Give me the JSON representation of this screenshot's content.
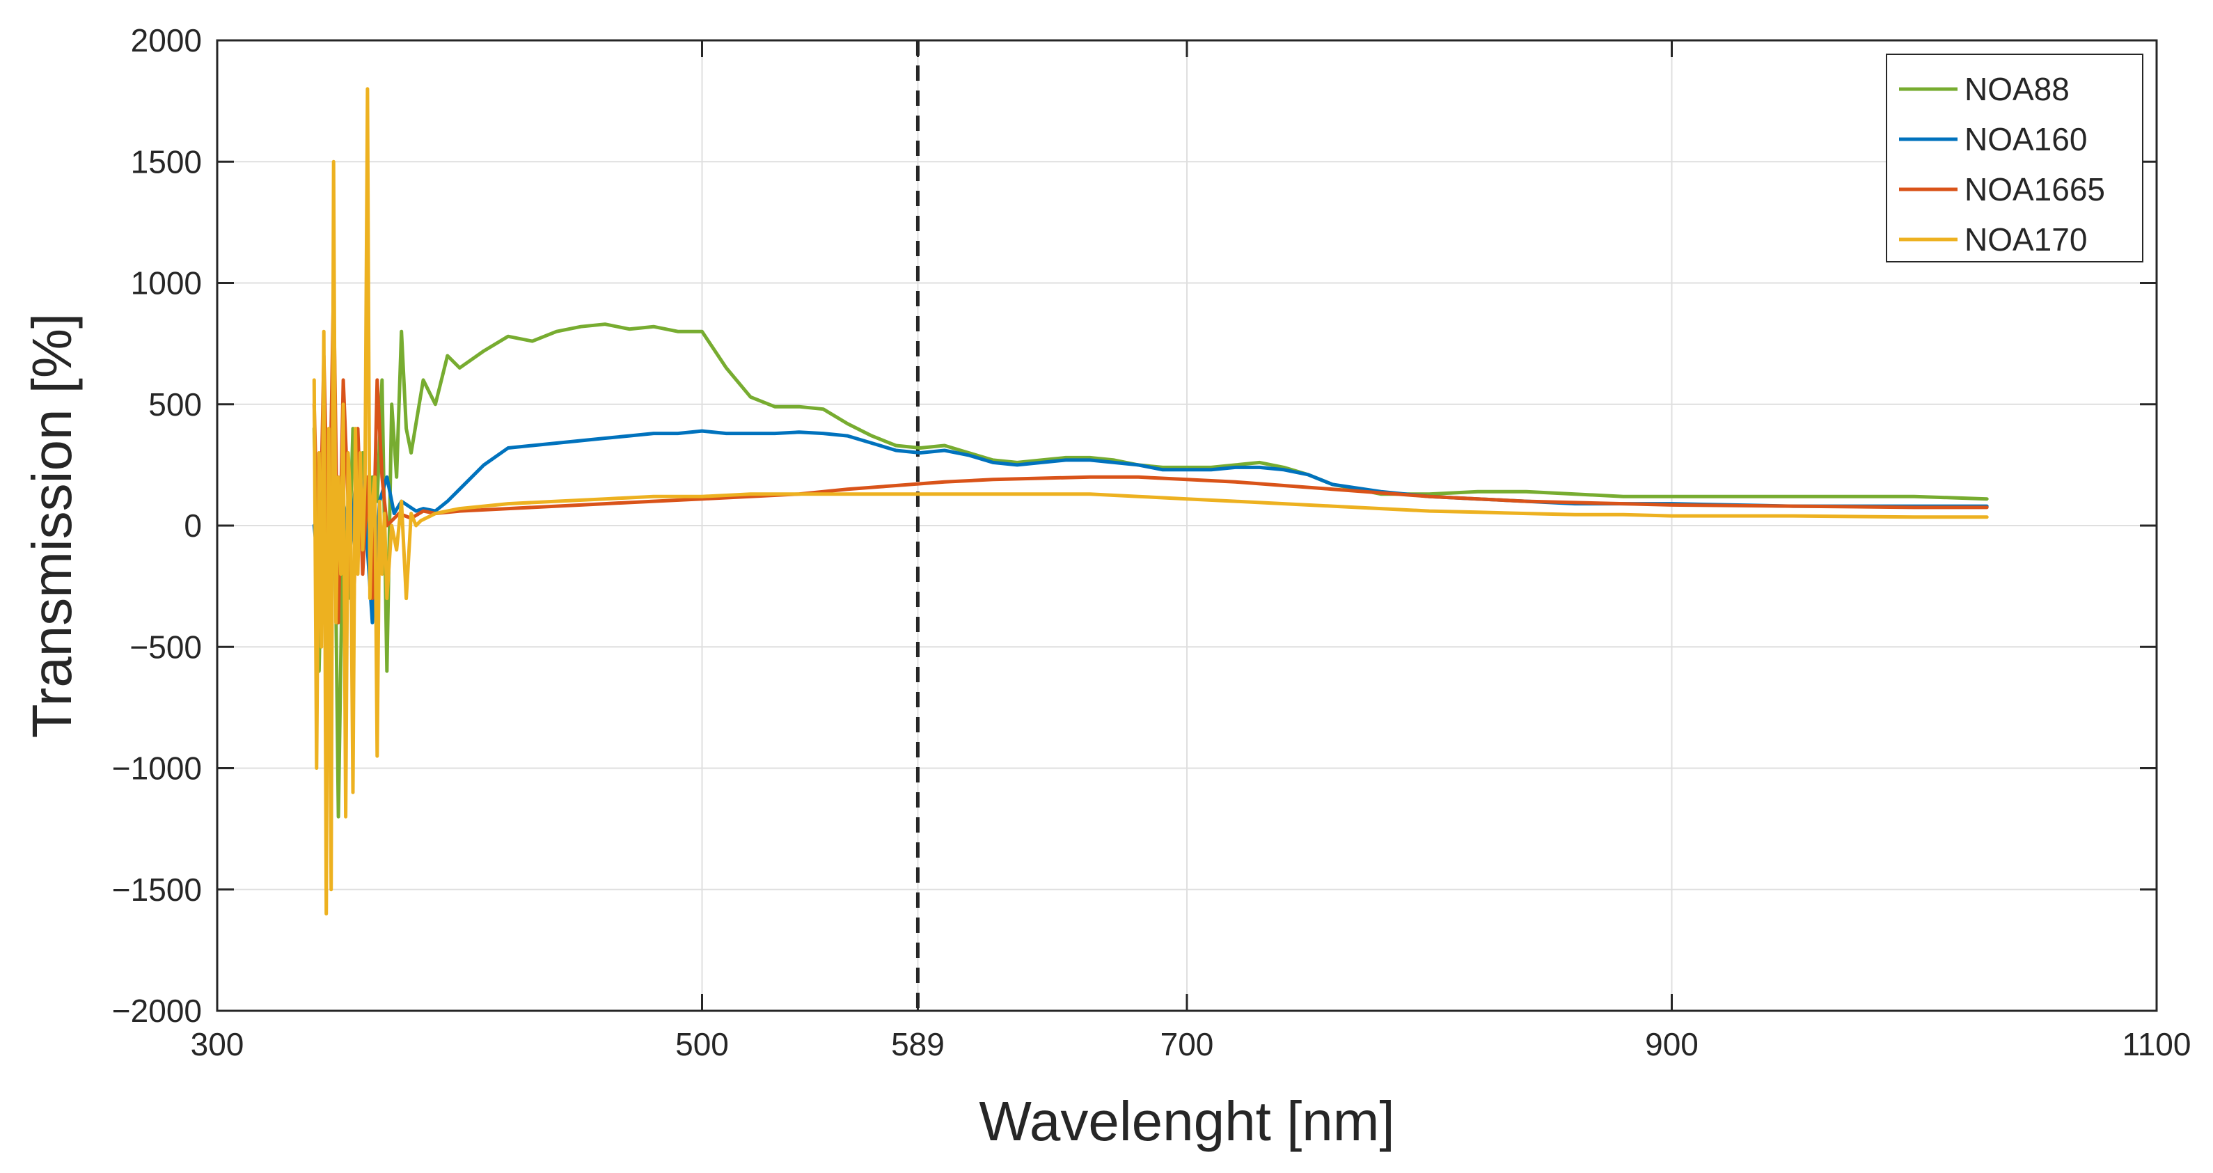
{
  "chart_data": {
    "type": "line",
    "title": "",
    "xlabel": "Wavelenght [nm]",
    "ylabel": "Transmission [%]",
    "xlim": [
      300,
      1100
    ],
    "ylim": [
      -2000,
      2000
    ],
    "xticks": [
      300,
      500,
      589,
      700,
      900,
      1100
    ],
    "yticks": [
      -2000,
      -1500,
      -1000,
      -500,
      0,
      500,
      1000,
      1500,
      2000
    ],
    "xtick_labels": [
      "300",
      "500",
      "589",
      "700",
      "900",
      "1100"
    ],
    "ytick_labels": [
      "−2000",
      "−1500",
      "−1000",
      "−500",
      "0",
      "500",
      "1000",
      "1500",
      "2000"
    ],
    "grid": true,
    "legend_position": "top-right",
    "reference_line": {
      "x": 589,
      "style": "dashed",
      "color": "#262626"
    },
    "series": [
      {
        "name": "NOA88",
        "color": "#77AC30",
        "x": [
          340,
          342,
          344,
          346,
          348,
          350,
          352,
          354,
          356,
          358,
          360,
          362,
          364,
          366,
          368,
          370,
          372,
          374,
          376,
          378,
          380,
          385,
          390,
          395,
          400,
          410,
          420,
          430,
          440,
          450,
          460,
          470,
          480,
          490,
          500,
          510,
          520,
          530,
          540,
          550,
          560,
          570,
          580,
          590,
          600,
          610,
          620,
          630,
          640,
          650,
          660,
          670,
          680,
          690,
          700,
          710,
          720,
          730,
          740,
          750,
          760,
          780,
          800,
          820,
          840,
          860,
          880,
          900,
          950,
          1000,
          1030
        ],
        "y": [
          400,
          -600,
          300,
          -200,
          500,
          -1200,
          100,
          -300,
          400,
          0,
          300,
          -100,
          200,
          100,
          600,
          -600,
          500,
          200,
          800,
          400,
          300,
          600,
          500,
          700,
          650,
          720,
          780,
          760,
          800,
          820,
          830,
          810,
          820,
          800,
          800,
          650,
          530,
          490,
          490,
          480,
          420,
          370,
          330,
          320,
          330,
          300,
          270,
          260,
          270,
          280,
          280,
          270,
          250,
          240,
          240,
          240,
          250,
          260,
          240,
          210,
          170,
          130,
          130,
          140,
          140,
          130,
          120,
          120,
          120,
          120,
          110
        ]
      },
      {
        "name": "NOA160",
        "color": "#0072BD",
        "x": [
          340,
          343,
          346,
          349,
          352,
          355,
          358,
          361,
          364,
          367,
          370,
          373,
          376,
          379,
          382,
          385,
          390,
          395,
          400,
          410,
          420,
          430,
          440,
          450,
          460,
          470,
          480,
          490,
          500,
          510,
          520,
          530,
          540,
          550,
          560,
          570,
          580,
          590,
          600,
          610,
          620,
          630,
          640,
          650,
          660,
          670,
          680,
          690,
          700,
          710,
          720,
          730,
          740,
          750,
          760,
          780,
          800,
          820,
          840,
          860,
          880,
          900,
          950,
          1000,
          1030
        ],
        "y": [
          0,
          -300,
          200,
          -150,
          100,
          -100,
          300,
          50,
          -400,
          100,
          200,
          50,
          100,
          80,
          60,
          70,
          60,
          100,
          150,
          250,
          320,
          330,
          340,
          350,
          360,
          370,
          380,
          380,
          390,
          380,
          380,
          380,
          385,
          380,
          370,
          340,
          310,
          300,
          310,
          290,
          260,
          250,
          260,
          270,
          270,
          260,
          250,
          230,
          230,
          230,
          240,
          240,
          230,
          210,
          170,
          140,
          120,
          110,
          100,
          90,
          90,
          90,
          80,
          80,
          80
        ]
      },
      {
        "name": "NOA1665",
        "color": "#D95319",
        "x": [
          340,
          342,
          344,
          346,
          348,
          350,
          352,
          354,
          356,
          358,
          360,
          362,
          364,
          366,
          368,
          370,
          375,
          380,
          385,
          390,
          400,
          420,
          440,
          460,
          480,
          500,
          520,
          540,
          560,
          580,
          600,
          620,
          640,
          660,
          680,
          700,
          720,
          740,
          760,
          780,
          800,
          820,
          840,
          860,
          880,
          900,
          950,
          1000,
          1030
        ],
        "y": [
          500,
          -300,
          700,
          -200,
          1000,
          -400,
          600,
          100,
          -500,
          400,
          -200,
          200,
          -300,
          600,
          200,
          0,
          50,
          30,
          60,
          50,
          60,
          70,
          80,
          90,
          100,
          110,
          120,
          130,
          150,
          165,
          180,
          190,
          195,
          200,
          200,
          190,
          180,
          165,
          150,
          135,
          120,
          110,
          100,
          95,
          90,
          85,
          80,
          75,
          75
        ]
      },
      {
        "name": "NOA170",
        "color": "#EDB120",
        "x": [
          340,
          341,
          342,
          343,
          344,
          345,
          346,
          347,
          348,
          349,
          350,
          351,
          352,
          353,
          354,
          355,
          356,
          357,
          358,
          359,
          360,
          361,
          362,
          363,
          364,
          365,
          366,
          367,
          368,
          369,
          370,
          372,
          374,
          376,
          378,
          380,
          382,
          384,
          386,
          388,
          390,
          395,
          400,
          410,
          420,
          440,
          460,
          480,
          500,
          520,
          540,
          560,
          580,
          600,
          620,
          640,
          660,
          680,
          700,
          720,
          740,
          760,
          780,
          800,
          820,
          840,
          860,
          880,
          900,
          950,
          1000,
          1030
        ],
        "y": [
          600,
          -1000,
          300,
          -500,
          800,
          -1600,
          400,
          -1500,
          1500,
          -400,
          200,
          -200,
          500,
          -1200,
          300,
          100,
          -1100,
          400,
          -200,
          300,
          -100,
          200,
          1800,
          -300,
          100,
          200,
          -950,
          100,
          -200,
          50,
          -300,
          0,
          -100,
          100,
          -300,
          50,
          0,
          20,
          30,
          40,
          50,
          60,
          70,
          80,
          90,
          100,
          110,
          120,
          120,
          130,
          130,
          130,
          130,
          130,
          130,
          130,
          130,
          120,
          110,
          100,
          90,
          80,
          70,
          60,
          55,
          50,
          45,
          45,
          40,
          40,
          35,
          35
        ]
      }
    ]
  }
}
